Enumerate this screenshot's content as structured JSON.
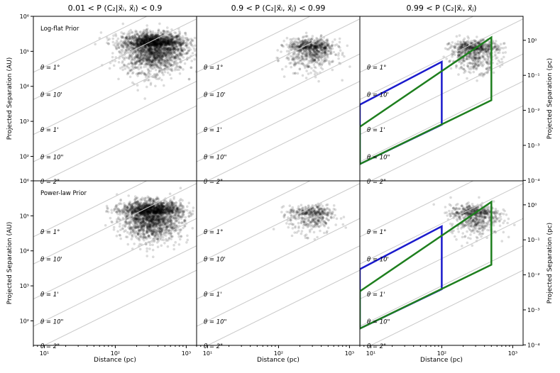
{
  "chart_data": {
    "type": "scatter",
    "layout": "2x3 grid",
    "column_titles": [
      "0.01  <  P (C₂|x⃗ᵢ, x⃗ⱼ)  <  0.9",
      "0.9  <  P (C₂|x⃗ᵢ, x⃗ⱼ)  <  0.99",
      "0.99  <  P (C₂|x⃗ᵢ, x⃗ⱼ)"
    ],
    "row_labels": [
      "Log-flat Prior",
      "Power-law Prior"
    ],
    "xlabel": "Distance (pc)",
    "ylabel_left": "Projected Separation (AU)",
    "ylabel_right": "Projected Separation (pc)",
    "x_scale": "log",
    "y_scale": "log",
    "xlim": [
      7,
      1400
    ],
    "ylim_au": [
      20,
      1000000
    ],
    "xticks": [
      {
        "value": 10,
        "label": "10¹"
      },
      {
        "value": 100,
        "label": "10²"
      },
      {
        "value": 1000,
        "label": "10³"
      }
    ],
    "yticks_au": [
      {
        "value": 100,
        "label": "10²"
      },
      {
        "value": 1000,
        "label": "10³"
      },
      {
        "value": 10000,
        "label": "10⁴"
      },
      {
        "value": 100000,
        "label": "10⁵"
      },
      {
        "value": 1000000,
        "label": "10⁶"
      }
    ],
    "yticks_pc": [
      {
        "value": 0.0001,
        "label": "10⁻⁴"
      },
      {
        "value": 0.001,
        "label": "10⁻³"
      },
      {
        "value": 0.01,
        "label": "10⁻²"
      },
      {
        "value": 0.1,
        "label": "10⁻¹"
      },
      {
        "value": 1,
        "label": "10⁰"
      }
    ],
    "angle_lines": [
      {
        "label": "θ = 1°",
        "arcsec": 3600
      },
      {
        "label": "θ = 10'",
        "arcsec": 600
      },
      {
        "label": "θ = 1'",
        "arcsec": 60
      },
      {
        "label": "θ = 10\"",
        "arcsec": 10
      },
      {
        "label": "θ = 2\"",
        "arcsec": 2
      }
    ],
    "point_clouds": [
      {
        "panel": "top-low-probability",
        "count": 2600,
        "center_distance_pc": 350,
        "center_sep_au": 150000,
        "spread_dex_x": 0.22,
        "spread_dex_y": 0.38
      },
      {
        "panel": "top-medium-probability",
        "count": 800,
        "center_distance_pc": 290,
        "center_sep_au": 120000,
        "spread_dex_x": 0.17,
        "spread_dex_y": 0.3
      },
      {
        "panel": "top-high-probability",
        "count": 750,
        "center_distance_pc": 290,
        "center_sep_au": 110000,
        "spread_dex_x": 0.17,
        "spread_dex_y": 0.3
      },
      {
        "panel": "bottom-low-probability",
        "count": 2400,
        "center_distance_pc": 330,
        "center_sep_au": 120000,
        "spread_dex_x": 0.21,
        "spread_dex_y": 0.37
      },
      {
        "panel": "bottom-medium-probability",
        "count": 450,
        "center_distance_pc": 290,
        "center_sep_au": 110000,
        "spread_dex_x": 0.16,
        "spread_dex_y": 0.28
      },
      {
        "panel": "bottom-high-probability",
        "count": 650,
        "center_distance_pc": 290,
        "center_sep_au": 110000,
        "spread_dex_x": 0.17,
        "spread_dex_y": 0.3
      }
    ],
    "selection_regions": [
      {
        "name": "100 pc region",
        "color": "#1a1acc",
        "corners": [
          [
            7,
            3000
          ],
          [
            100,
            50000
          ],
          [
            100,
            800
          ],
          [
            7,
            60
          ]
        ]
      },
      {
        "name": "500 pc region",
        "color": "#1e7f1e",
        "corners": [
          [
            7,
            700
          ],
          [
            500,
            250000
          ],
          [
            500,
            4000
          ],
          [
            7,
            60
          ]
        ]
      }
    ],
    "colors": {
      "points": "#000000",
      "angle_lines": "#c8c8c8"
    }
  }
}
